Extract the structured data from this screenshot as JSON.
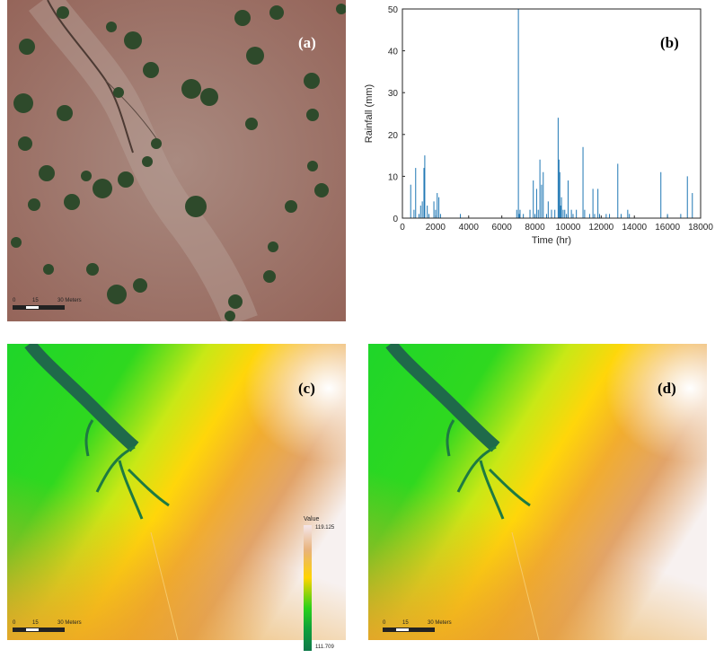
{
  "panels": {
    "a": {
      "label": "(a)",
      "scale": {
        "ticks": [
          "0",
          "15",
          "30 Meters"
        ]
      },
      "credits": ""
    },
    "b": {
      "label": "(b)"
    },
    "c": {
      "label": "(c)",
      "scale": {
        "ticks": [
          "0",
          "15",
          "30 Meters"
        ]
      },
      "legend": {
        "title": "Value",
        "max": "119.125",
        "min": "111.709"
      }
    },
    "d": {
      "label": "(d)",
      "scale": {
        "ticks": [
          "0",
          "15",
          "30 Meters"
        ]
      }
    }
  },
  "colors": {
    "soil": "#9a6a5c",
    "vegetation": "#2f4a2a",
    "line": "#1f77b4"
  },
  "chart_data": {
    "type": "line",
    "title": "",
    "xlabel": "Time (hr)",
    "ylabel": "Rainfall (mm)",
    "xlim": [
      0,
      18000
    ],
    "ylim": [
      0,
      50
    ],
    "xticks": [
      "0",
      "2000",
      "4000",
      "6000",
      "8000",
      "10000",
      "12000",
      "14000",
      "16000",
      "18000"
    ],
    "yticks": [
      "0",
      "10",
      "20",
      "30",
      "40",
      "50"
    ],
    "grid": false,
    "series": [
      {
        "x": [
          500,
          700,
          800,
          1000,
          1100,
          1200,
          1300,
          1350,
          1500,
          1600,
          1900,
          2000,
          2100,
          2200,
          2300,
          3500,
          6900,
          7000,
          7050,
          7100,
          7300,
          7700,
          7900,
          8000,
          8100,
          8200,
          8300,
          8400,
          8500,
          8700,
          8800,
          9000,
          9200,
          9400,
          9450,
          9500,
          9550,
          9600,
          9700,
          9800,
          9900,
          10000,
          10200,
          10300,
          10500,
          10900,
          11000,
          11300,
          11500,
          11600,
          11800,
          11900,
          12300,
          12500,
          13000,
          13200,
          13600,
          13700,
          15600,
          16000,
          16800,
          17200,
          17500
        ],
        "y": [
          8,
          2,
          12,
          1,
          3,
          4,
          12,
          15,
          3,
          1,
          4,
          2,
          6,
          5,
          1,
          1,
          2,
          50,
          1,
          2,
          1,
          2,
          9,
          1,
          7,
          2,
          14,
          8,
          11,
          1,
          4,
          2,
          2,
          24,
          14,
          11,
          3,
          5,
          2,
          2,
          1,
          9,
          2,
          1,
          2,
          17,
          2,
          1,
          7,
          1,
          7,
          1,
          1,
          1,
          13,
          1,
          2,
          1,
          11,
          1,
          1,
          10,
          6
        ]
      }
    ]
  }
}
